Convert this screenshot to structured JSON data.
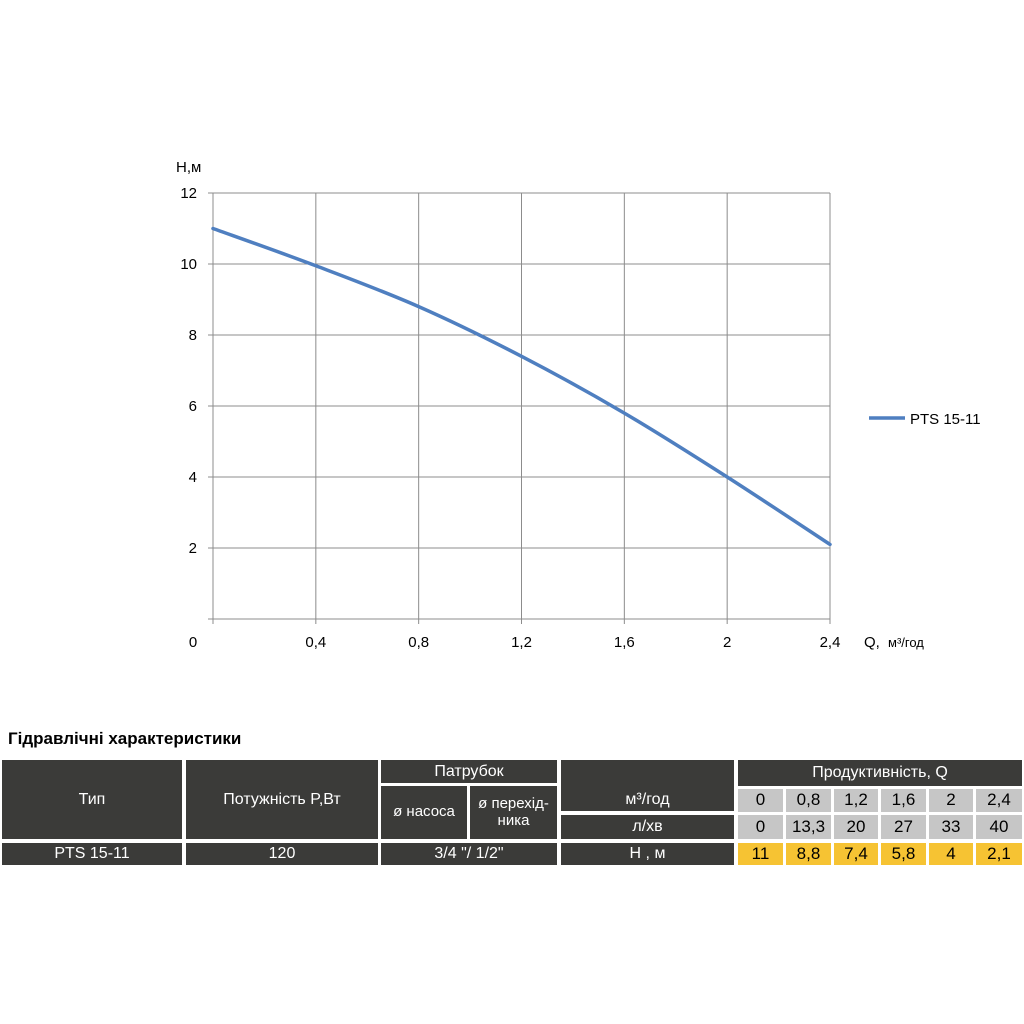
{
  "chart_data": {
    "type": "line",
    "x": [
      0,
      0.4,
      0.8,
      1.2,
      1.6,
      2,
      2.4
    ],
    "series": [
      {
        "name": "PTS 15-11",
        "values": [
          11,
          9.95,
          8.8,
          7.4,
          5.8,
          4,
          2.1
        ],
        "color": "#4f7fc0"
      }
    ],
    "xlabel": "Q,",
    "xunit": "м³/год",
    "ylabel": "Н,м",
    "xlim": [
      0,
      2.4
    ],
    "ylim": [
      0,
      12
    ],
    "x_ticks": [
      "0,4",
      "0,8",
      "1,2",
      "1,6",
      "2",
      "2,4"
    ],
    "y_ticks": [
      "2",
      "4",
      "6",
      "8",
      "10",
      "12"
    ],
    "origin_label": "0",
    "grid": true,
    "legend": "right"
  },
  "table": {
    "title": "Гідравлічні характеристики",
    "header": {
      "type": "Тип",
      "power": "Потужність  P,Вт",
      "nozzle": "Патрубок",
      "pump_diam": "ø насоса",
      "adapter_diam": "ø перехід-\nника",
      "capacity": "Продуктивність, Q",
      "m3": "м³/год",
      "lmin": "л/хв"
    },
    "m3_values": [
      "0",
      "0,8",
      "1,2",
      "1,6",
      "2",
      "2,4"
    ],
    "lmin_values": [
      "0",
      "13,3",
      "20",
      "27",
      "33",
      "40"
    ],
    "row": {
      "type": "PTS 15-11",
      "power": "120",
      "nozzle": "3/4 \"/ 1/2\"",
      "h_label": "Н , м",
      "h_values": [
        "11",
        "8,8",
        "7,4",
        "5,8",
        "4",
        "2,1"
      ]
    }
  }
}
